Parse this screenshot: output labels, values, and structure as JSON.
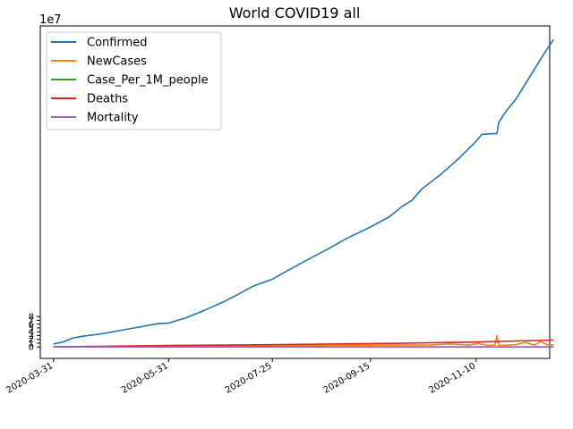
{
  "chart_data": {
    "type": "line",
    "title": "World COVID19 all",
    "xlabel": "",
    "ylabel": "",
    "y_multiplier_label": "1e7",
    "ylim": [
      -3.0,
      84.3
    ],
    "y_ticks": [
      0,
      1,
      2,
      3,
      4,
      5,
      6,
      7,
      8
    ],
    "x_ticks": [
      "2020-03-31",
      "2020-05-31",
      "2020-07-25",
      "2020-09-15",
      "2020-11-10",
      ""
    ],
    "xlim_days": [
      -7,
      263
    ],
    "x_tick_days": [
      0,
      61,
      116,
      168,
      224,
      276
    ],
    "legend_position": "upper-left",
    "grid": false,
    "series": [
      {
        "name": "Confirmed",
        "color": "#1f77b4",
        "points": [
          [
            0,
            0.8
          ],
          [
            5,
            1.3
          ],
          [
            10,
            2.3
          ],
          [
            15,
            2.8
          ],
          [
            25,
            3.4
          ],
          [
            35,
            4.3
          ],
          [
            45,
            5.2
          ],
          [
            55,
            6.1
          ],
          [
            61,
            6.3
          ],
          [
            70,
            7.6
          ],
          [
            80,
            9.6
          ],
          [
            90,
            11.8
          ],
          [
            100,
            14.4
          ],
          [
            105,
            15.8
          ],
          [
            116,
            17.8
          ],
          [
            125,
            20.3
          ],
          [
            135,
            23.0
          ],
          [
            145,
            25.6
          ],
          [
            155,
            28.4
          ],
          [
            168,
            31.5
          ],
          [
            178,
            34.2
          ],
          [
            185,
            37.0
          ],
          [
            190,
            38.5
          ],
          [
            195,
            41.4
          ],
          [
            205,
            45.2
          ],
          [
            215,
            49.6
          ],
          [
            224,
            54.0
          ],
          [
            227,
            55.8
          ],
          [
            232,
            56.0
          ],
          [
            235,
            56.0
          ],
          [
            236,
            59.0
          ],
          [
            240,
            62.0
          ],
          [
            245,
            65.0
          ],
          [
            250,
            69.0
          ],
          [
            255,
            73.0
          ],
          [
            260,
            77.0
          ],
          [
            265,
            80.7
          ]
        ]
      },
      {
        "name": "NewCases",
        "color": "#ff7f0e",
        "points": [
          [
            0,
            0.05
          ],
          [
            30,
            0.1
          ],
          [
            60,
            0.15
          ],
          [
            90,
            0.25
          ],
          [
            120,
            0.3
          ],
          [
            150,
            0.4
          ],
          [
            180,
            0.5
          ],
          [
            200,
            0.5
          ],
          [
            210,
            0.8
          ],
          [
            220,
            0.5
          ],
          [
            225,
            0.9
          ],
          [
            230,
            0.4
          ],
          [
            234,
            0.5
          ],
          [
            235,
            3.0
          ],
          [
            236,
            0.4
          ],
          [
            245,
            0.6
          ],
          [
            250,
            1.2
          ],
          [
            255,
            0.5
          ],
          [
            258,
            1.4
          ],
          [
            262,
            0.6
          ],
          [
            265,
            0.5
          ]
        ]
      },
      {
        "name": "Case_Per_1M_people",
        "color": "#2ca02c",
        "points": [
          [
            0,
            0.0
          ],
          [
            265,
            0.0
          ]
        ]
      },
      {
        "name": "Deaths",
        "color": "#d62728",
        "points": [
          [
            0,
            0.04
          ],
          [
            60,
            0.37
          ],
          [
            120,
            0.62
          ],
          [
            180,
            0.95
          ],
          [
            224,
            1.3
          ],
          [
            265,
            1.8
          ]
        ]
      },
      {
        "name": "Mortality",
        "color": "#9467bd",
        "points": [
          [
            0,
            0.0
          ],
          [
            265,
            0.0
          ]
        ]
      }
    ]
  }
}
